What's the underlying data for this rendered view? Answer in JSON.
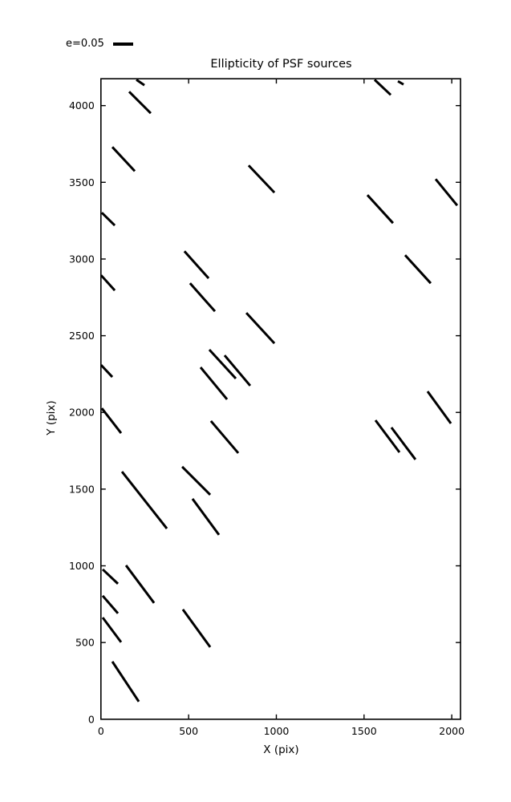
{
  "title": "Ellipticity of PSF sources",
  "legend": {
    "label": "e=0.05",
    "e_ref": 0.05
  },
  "axes": {
    "xlabel": "X (pix)",
    "ylabel": "Y (pix)",
    "xlim": [
      0,
      2050
    ],
    "ylim": [
      0,
      4175
    ],
    "xticks": [
      0,
      500,
      1000,
      1500,
      2000
    ],
    "yticks": [
      0,
      500,
      1000,
      1500,
      2000,
      2500,
      3000,
      3500,
      4000
    ]
  },
  "colors": {
    "stroke": "#000000",
    "background": "#ffffff"
  },
  "chart_data": {
    "type": "scatter",
    "mark": "whisker-line-segments",
    "title": "Ellipticity of PSF sources",
    "xlabel": "X (pix)",
    "ylabel": "Y (pix)",
    "xlim": [
      0,
      2050
    ],
    "ylim": [
      0,
      4175
    ],
    "grid": false,
    "legend_position": "upper-left-outside",
    "legend_label": "e=0.05",
    "reference_ellipticity": 0.05,
    "segment_columns": [
      "x1",
      "y1",
      "x2",
      "y2",
      "e_visible",
      "clipped_at_edge"
    ],
    "segments": [
      [
        202,
        4169,
        248,
        4133,
        0.024,
        true
      ],
      [
        161,
        4091,
        284,
        3950,
        0.076,
        false
      ],
      [
        65,
        3730,
        193,
        3573,
        0.082,
        false
      ],
      [
        842,
        3610,
        989,
        3433,
        0.093,
        false
      ],
      [
        5,
        3302,
        79,
        3219,
        0.045,
        true
      ],
      [
        476,
        3051,
        614,
        2874,
        0.09,
        false
      ],
      [
        1,
        2894,
        79,
        2795,
        0.051,
        true
      ],
      [
        508,
        2842,
        650,
        2659,
        0.093,
        false
      ],
      [
        1734,
        3025,
        1880,
        2842,
        0.095,
        false
      ],
      [
        1908,
        3521,
        2031,
        3349,
        0.085,
        false
      ],
      [
        1519,
        3417,
        1665,
        3234,
        0.095,
        false
      ],
      [
        1560,
        4169,
        1652,
        4070,
        0.055,
        true
      ],
      [
        1693,
        4159,
        1725,
        4138,
        0.016,
        true
      ],
      [
        829,
        2649,
        989,
        2450,
        0.103,
        false
      ],
      [
        618,
        2409,
        769,
        2221,
        0.098,
        false
      ],
      [
        705,
        2372,
        851,
        2174,
        0.099,
        false
      ],
      [
        568,
        2294,
        719,
        2085,
        0.104,
        false
      ],
      [
        1,
        2309,
        65,
        2231,
        0.041,
        true
      ],
      [
        5,
        2027,
        115,
        1865,
        0.078,
        true
      ],
      [
        1565,
        1949,
        1702,
        1740,
        0.1,
        false
      ],
      [
        1656,
        1902,
        1793,
        1693,
        0.1,
        false
      ],
      [
        1862,
        2137,
        1995,
        1928,
        0.099,
        false
      ],
      [
        627,
        1944,
        783,
        1735,
        0.105,
        false
      ],
      [
        120,
        1614,
        376,
        1243,
        0.181,
        false
      ],
      [
        463,
        1646,
        623,
        1463,
        0.099,
        false
      ],
      [
        522,
        1437,
        673,
        1202,
        0.112,
        false
      ],
      [
        10,
        977,
        97,
        883,
        0.052,
        true
      ],
      [
        143,
        1003,
        303,
        758,
        0.117,
        false
      ],
      [
        10,
        805,
        97,
        690,
        0.052,
        true
      ],
      [
        10,
        663,
        115,
        502,
        0.077,
        true
      ],
      [
        467,
        716,
        623,
        470,
        0.116,
        false
      ],
      [
        65,
        376,
        216,
        115,
        0.12,
        false
      ]
    ]
  }
}
